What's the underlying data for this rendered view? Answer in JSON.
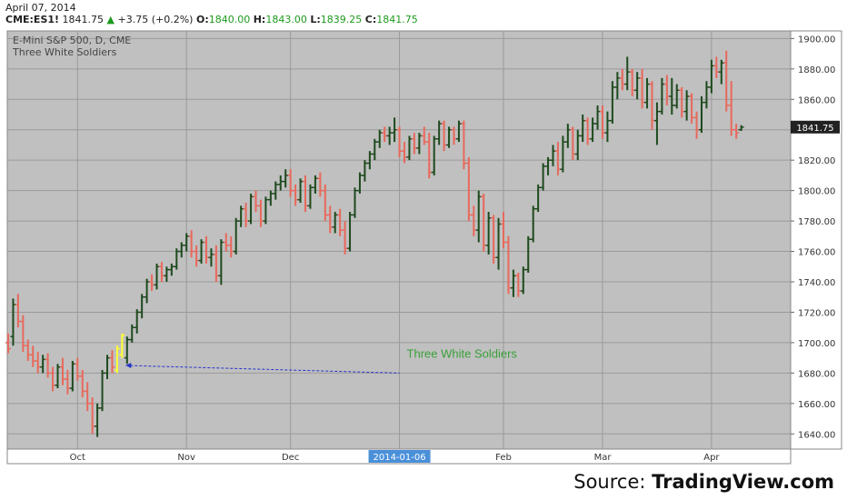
{
  "header": {
    "date": "April 07, 2014",
    "symbol": "CME:ES1!",
    "last": "1841.75",
    "change": "+3.75 (+0.2%)",
    "open_label": "O:",
    "open": "1840.00",
    "high_label": "H:",
    "high": "1843.00",
    "low_label": "L:",
    "low": "1839.25",
    "close_label": "C:",
    "close": "1841.75"
  },
  "source": {
    "prefix": "Source: ",
    "name": "TradingView.com"
  },
  "colors": {
    "up": "#1e4a1e",
    "down": "#e8695c",
    "plot_bg": "#c0c0c0",
    "highlight": "#ffff33",
    "annotation": "#3aa03a",
    "arrow": "#2233cc",
    "price_tag_bg": "#222222"
  },
  "chart_data": {
    "type": "ohlc",
    "title": "E-Mini S&P 500, D, CME",
    "subtitle": "Three White Soldiers",
    "ylim": [
      1630,
      1905
    ],
    "yticks": [
      1640,
      1660,
      1680,
      1700,
      1720,
      1740,
      1760,
      1780,
      1800,
      1820,
      1840,
      1860,
      1880,
      1900
    ],
    "ytick_labels": [
      "1640.00",
      "1660.00",
      "1680.00",
      "1700.00",
      "1720.00",
      "1740.00",
      "1760.00",
      "1780.00",
      "1800.00",
      "1820.00",
      "1840.00",
      "1860.00",
      "1880.00",
      "1900.00"
    ],
    "month_labels": [
      {
        "label": "Oct",
        "bar": 14
      },
      {
        "label": "Nov",
        "bar": 36
      },
      {
        "label": "Dec",
        "bar": 57
      },
      {
        "label": "2014-01-06",
        "bar": 79,
        "highlight": true
      },
      {
        "label": "Feb",
        "bar": 100
      },
      {
        "label": "Mar",
        "bar": 120
      },
      {
        "label": "Apr",
        "bar": 142
      }
    ],
    "last_price_label": "1841.75",
    "last_price": 1841.75,
    "annotation": {
      "text": "Three White Soldiers",
      "bar": 79,
      "price": 1685
    },
    "highlight_bars": [
      22,
      23
    ],
    "bars": [
      {
        "o": 1700,
        "h": 1706,
        "l": 1693,
        "c": 1696,
        "up": false
      },
      {
        "o": 1704,
        "h": 1729,
        "l": 1698,
        "c": 1725,
        "up": true
      },
      {
        "o": 1725,
        "h": 1732,
        "l": 1710,
        "c": 1714,
        "up": false
      },
      {
        "o": 1714,
        "h": 1718,
        "l": 1694,
        "c": 1698,
        "up": false
      },
      {
        "o": 1698,
        "h": 1702,
        "l": 1688,
        "c": 1692,
        "up": false
      },
      {
        "o": 1692,
        "h": 1698,
        "l": 1684,
        "c": 1688,
        "up": false
      },
      {
        "o": 1688,
        "h": 1694,
        "l": 1680,
        "c": 1684,
        "up": false
      },
      {
        "o": 1684,
        "h": 1692,
        "l": 1680,
        "c": 1689,
        "up": true
      },
      {
        "o": 1689,
        "h": 1693,
        "l": 1677,
        "c": 1680,
        "up": false
      },
      {
        "o": 1680,
        "h": 1684,
        "l": 1668,
        "c": 1672,
        "up": false
      },
      {
        "o": 1672,
        "h": 1686,
        "l": 1670,
        "c": 1684,
        "up": true
      },
      {
        "o": 1684,
        "h": 1690,
        "l": 1672,
        "c": 1676,
        "up": false
      },
      {
        "o": 1676,
        "h": 1682,
        "l": 1666,
        "c": 1670,
        "up": false
      },
      {
        "o": 1670,
        "h": 1688,
        "l": 1668,
        "c": 1686,
        "up": true
      },
      {
        "o": 1686,
        "h": 1690,
        "l": 1675,
        "c": 1678,
        "up": false
      },
      {
        "o": 1678,
        "h": 1682,
        "l": 1664,
        "c": 1668,
        "up": false
      },
      {
        "o": 1668,
        "h": 1674,
        "l": 1655,
        "c": 1660,
        "up": false
      },
      {
        "o": 1660,
        "h": 1664,
        "l": 1640,
        "c": 1645,
        "up": false
      },
      {
        "o": 1645,
        "h": 1660,
        "l": 1638,
        "c": 1657,
        "up": true
      },
      {
        "o": 1657,
        "h": 1682,
        "l": 1655,
        "c": 1680,
        "up": true
      },
      {
        "o": 1680,
        "h": 1692,
        "l": 1676,
        "c": 1690,
        "up": true
      },
      {
        "o": 1690,
        "h": 1695,
        "l": 1680,
        "c": 1684,
        "up": false
      },
      {
        "o": 1682,
        "h": 1698,
        "l": 1680,
        "c": 1696,
        "up": true
      },
      {
        "o": 1692,
        "h": 1706,
        "l": 1690,
        "c": 1705,
        "up": true
      },
      {
        "o": 1690,
        "h": 1704,
        "l": 1686,
        "c": 1702,
        "up": true
      },
      {
        "o": 1702,
        "h": 1712,
        "l": 1700,
        "c": 1710,
        "up": true
      },
      {
        "o": 1710,
        "h": 1722,
        "l": 1706,
        "c": 1720,
        "up": true
      },
      {
        "o": 1720,
        "h": 1732,
        "l": 1716,
        "c": 1730,
        "up": true
      },
      {
        "o": 1730,
        "h": 1742,
        "l": 1726,
        "c": 1740,
        "up": true
      },
      {
        "o": 1740,
        "h": 1745,
        "l": 1734,
        "c": 1738,
        "up": false
      },
      {
        "o": 1738,
        "h": 1752,
        "l": 1735,
        "c": 1750,
        "up": true
      },
      {
        "o": 1750,
        "h": 1753,
        "l": 1740,
        "c": 1744,
        "up": false
      },
      {
        "o": 1744,
        "h": 1750,
        "l": 1740,
        "c": 1748,
        "up": true
      },
      {
        "o": 1748,
        "h": 1752,
        "l": 1744,
        "c": 1750,
        "up": true
      },
      {
        "o": 1750,
        "h": 1762,
        "l": 1748,
        "c": 1760,
        "up": true
      },
      {
        "o": 1760,
        "h": 1766,
        "l": 1756,
        "c": 1764,
        "up": true
      },
      {
        "o": 1764,
        "h": 1772,
        "l": 1760,
        "c": 1770,
        "up": true
      },
      {
        "o": 1770,
        "h": 1774,
        "l": 1756,
        "c": 1760,
        "up": false
      },
      {
        "o": 1760,
        "h": 1764,
        "l": 1750,
        "c": 1754,
        "up": false
      },
      {
        "o": 1754,
        "h": 1768,
        "l": 1752,
        "c": 1766,
        "up": true
      },
      {
        "o": 1766,
        "h": 1770,
        "l": 1752,
        "c": 1756,
        "up": false
      },
      {
        "o": 1756,
        "h": 1762,
        "l": 1750,
        "c": 1758,
        "up": true
      },
      {
        "o": 1758,
        "h": 1764,
        "l": 1740,
        "c": 1744,
        "up": false
      },
      {
        "o": 1744,
        "h": 1768,
        "l": 1738,
        "c": 1766,
        "up": true
      },
      {
        "o": 1766,
        "h": 1772,
        "l": 1760,
        "c": 1764,
        "up": false
      },
      {
        "o": 1764,
        "h": 1770,
        "l": 1756,
        "c": 1760,
        "up": false
      },
      {
        "o": 1760,
        "h": 1782,
        "l": 1758,
        "c": 1780,
        "up": true
      },
      {
        "o": 1780,
        "h": 1790,
        "l": 1776,
        "c": 1788,
        "up": true
      },
      {
        "o": 1788,
        "h": 1792,
        "l": 1776,
        "c": 1780,
        "up": false
      },
      {
        "o": 1780,
        "h": 1798,
        "l": 1778,
        "c": 1796,
        "up": true
      },
      {
        "o": 1796,
        "h": 1800,
        "l": 1786,
        "c": 1790,
        "up": false
      },
      {
        "o": 1790,
        "h": 1794,
        "l": 1776,
        "c": 1780,
        "up": false
      },
      {
        "o": 1780,
        "h": 1796,
        "l": 1778,
        "c": 1794,
        "up": true
      },
      {
        "o": 1794,
        "h": 1800,
        "l": 1790,
        "c": 1798,
        "up": true
      },
      {
        "o": 1798,
        "h": 1806,
        "l": 1794,
        "c": 1804,
        "up": true
      },
      {
        "o": 1804,
        "h": 1810,
        "l": 1800,
        "c": 1806,
        "up": true
      },
      {
        "o": 1806,
        "h": 1814,
        "l": 1802,
        "c": 1810,
        "up": true
      },
      {
        "o": 1810,
        "h": 1814,
        "l": 1796,
        "c": 1800,
        "up": false
      },
      {
        "o": 1800,
        "h": 1804,
        "l": 1790,
        "c": 1794,
        "up": false
      },
      {
        "o": 1794,
        "h": 1808,
        "l": 1792,
        "c": 1806,
        "up": true
      },
      {
        "o": 1806,
        "h": 1810,
        "l": 1786,
        "c": 1790,
        "up": false
      },
      {
        "o": 1790,
        "h": 1804,
        "l": 1788,
        "c": 1802,
        "up": true
      },
      {
        "o": 1802,
        "h": 1810,
        "l": 1798,
        "c": 1808,
        "up": true
      },
      {
        "o": 1808,
        "h": 1812,
        "l": 1796,
        "c": 1800,
        "up": false
      },
      {
        "o": 1800,
        "h": 1804,
        "l": 1780,
        "c": 1784,
        "up": false
      },
      {
        "o": 1784,
        "h": 1790,
        "l": 1772,
        "c": 1776,
        "up": false
      },
      {
        "o": 1776,
        "h": 1786,
        "l": 1772,
        "c": 1784,
        "up": true
      },
      {
        "o": 1784,
        "h": 1788,
        "l": 1770,
        "c": 1774,
        "up": false
      },
      {
        "o": 1774,
        "h": 1780,
        "l": 1758,
        "c": 1762,
        "up": false
      },
      {
        "o": 1762,
        "h": 1786,
        "l": 1760,
        "c": 1784,
        "up": true
      },
      {
        "o": 1784,
        "h": 1802,
        "l": 1782,
        "c": 1800,
        "up": true
      },
      {
        "o": 1800,
        "h": 1812,
        "l": 1798,
        "c": 1810,
        "up": true
      },
      {
        "o": 1810,
        "h": 1820,
        "l": 1806,
        "c": 1818,
        "up": true
      },
      {
        "o": 1818,
        "h": 1826,
        "l": 1814,
        "c": 1824,
        "up": true
      },
      {
        "o": 1824,
        "h": 1834,
        "l": 1820,
        "c": 1832,
        "up": true
      },
      {
        "o": 1832,
        "h": 1840,
        "l": 1828,
        "c": 1838,
        "up": true
      },
      {
        "o": 1838,
        "h": 1842,
        "l": 1832,
        "c": 1836,
        "up": false
      },
      {
        "o": 1836,
        "h": 1842,
        "l": 1830,
        "c": 1838,
        "up": true
      },
      {
        "o": 1838,
        "h": 1848,
        "l": 1832,
        "c": 1840,
        "up": true
      },
      {
        "o": 1840,
        "h": 1842,
        "l": 1822,
        "c": 1826,
        "up": false
      },
      {
        "o": 1826,
        "h": 1832,
        "l": 1818,
        "c": 1822,
        "up": false
      },
      {
        "o": 1822,
        "h": 1836,
        "l": 1820,
        "c": 1834,
        "up": true
      },
      {
        "o": 1834,
        "h": 1838,
        "l": 1824,
        "c": 1828,
        "up": false
      },
      {
        "o": 1828,
        "h": 1838,
        "l": 1824,
        "c": 1836,
        "up": true
      },
      {
        "o": 1836,
        "h": 1842,
        "l": 1830,
        "c": 1832,
        "up": false
      },
      {
        "o": 1832,
        "h": 1838,
        "l": 1808,
        "c": 1812,
        "up": false
      },
      {
        "o": 1812,
        "h": 1836,
        "l": 1810,
        "c": 1834,
        "up": true
      },
      {
        "o": 1834,
        "h": 1846,
        "l": 1830,
        "c": 1844,
        "up": true
      },
      {
        "o": 1844,
        "h": 1846,
        "l": 1826,
        "c": 1830,
        "up": false
      },
      {
        "o": 1830,
        "h": 1842,
        "l": 1828,
        "c": 1840,
        "up": true
      },
      {
        "o": 1840,
        "h": 1842,
        "l": 1830,
        "c": 1834,
        "up": false
      },
      {
        "o": 1834,
        "h": 1846,
        "l": 1832,
        "c": 1844,
        "up": true
      },
      {
        "o": 1844,
        "h": 1846,
        "l": 1814,
        "c": 1818,
        "up": false
      },
      {
        "o": 1818,
        "h": 1822,
        "l": 1780,
        "c": 1784,
        "up": false
      },
      {
        "o": 1784,
        "h": 1790,
        "l": 1770,
        "c": 1774,
        "up": false
      },
      {
        "o": 1774,
        "h": 1800,
        "l": 1766,
        "c": 1796,
        "up": true
      },
      {
        "o": 1796,
        "h": 1798,
        "l": 1760,
        "c": 1764,
        "up": false
      },
      {
        "o": 1764,
        "h": 1786,
        "l": 1758,
        "c": 1782,
        "up": true
      },
      {
        "o": 1782,
        "h": 1784,
        "l": 1752,
        "c": 1756,
        "up": false
      },
      {
        "o": 1756,
        "h": 1782,
        "l": 1748,
        "c": 1778,
        "up": true
      },
      {
        "o": 1778,
        "h": 1786,
        "l": 1762,
        "c": 1766,
        "up": false
      },
      {
        "o": 1766,
        "h": 1770,
        "l": 1732,
        "c": 1736,
        "up": false
      },
      {
        "o": 1736,
        "h": 1748,
        "l": 1730,
        "c": 1744,
        "up": true
      },
      {
        "o": 1744,
        "h": 1746,
        "l": 1730,
        "c": 1734,
        "up": false
      },
      {
        "o": 1734,
        "h": 1750,
        "l": 1732,
        "c": 1748,
        "up": true
      },
      {
        "o": 1748,
        "h": 1770,
        "l": 1746,
        "c": 1768,
        "up": true
      },
      {
        "o": 1768,
        "h": 1790,
        "l": 1766,
        "c": 1788,
        "up": true
      },
      {
        "o": 1788,
        "h": 1804,
        "l": 1786,
        "c": 1802,
        "up": true
      },
      {
        "o": 1802,
        "h": 1818,
        "l": 1800,
        "c": 1816,
        "up": true
      },
      {
        "o": 1816,
        "h": 1822,
        "l": 1810,
        "c": 1820,
        "up": true
      },
      {
        "o": 1820,
        "h": 1830,
        "l": 1816,
        "c": 1826,
        "up": true
      },
      {
        "o": 1826,
        "h": 1832,
        "l": 1810,
        "c": 1814,
        "up": false
      },
      {
        "o": 1814,
        "h": 1836,
        "l": 1812,
        "c": 1832,
        "up": true
      },
      {
        "o": 1832,
        "h": 1844,
        "l": 1828,
        "c": 1840,
        "up": true
      },
      {
        "o": 1840,
        "h": 1842,
        "l": 1820,
        "c": 1824,
        "up": false
      },
      {
        "o": 1824,
        "h": 1840,
        "l": 1820,
        "c": 1836,
        "up": true
      },
      {
        "o": 1836,
        "h": 1850,
        "l": 1832,
        "c": 1846,
        "up": true
      },
      {
        "o": 1846,
        "h": 1848,
        "l": 1830,
        "c": 1834,
        "up": false
      },
      {
        "o": 1834,
        "h": 1848,
        "l": 1832,
        "c": 1844,
        "up": true
      },
      {
        "o": 1844,
        "h": 1856,
        "l": 1840,
        "c": 1852,
        "up": true
      },
      {
        "o": 1852,
        "h": 1856,
        "l": 1834,
        "c": 1838,
        "up": false
      },
      {
        "o": 1838,
        "h": 1852,
        "l": 1832,
        "c": 1846,
        "up": true
      },
      {
        "o": 1846,
        "h": 1872,
        "l": 1844,
        "c": 1868,
        "up": true
      },
      {
        "o": 1868,
        "h": 1878,
        "l": 1860,
        "c": 1874,
        "up": true
      },
      {
        "o": 1874,
        "h": 1880,
        "l": 1866,
        "c": 1870,
        "up": false
      },
      {
        "o": 1870,
        "h": 1888,
        "l": 1866,
        "c": 1878,
        "up": true
      },
      {
        "o": 1878,
        "h": 1880,
        "l": 1862,
        "c": 1866,
        "up": false
      },
      {
        "o": 1866,
        "h": 1878,
        "l": 1860,
        "c": 1874,
        "up": true
      },
      {
        "o": 1874,
        "h": 1880,
        "l": 1854,
        "c": 1858,
        "up": false
      },
      {
        "o": 1858,
        "h": 1874,
        "l": 1854,
        "c": 1870,
        "up": true
      },
      {
        "o": 1870,
        "h": 1872,
        "l": 1840,
        "c": 1846,
        "up": false
      },
      {
        "o": 1846,
        "h": 1858,
        "l": 1830,
        "c": 1852,
        "up": true
      },
      {
        "o": 1852,
        "h": 1874,
        "l": 1850,
        "c": 1870,
        "up": true
      },
      {
        "o": 1870,
        "h": 1876,
        "l": 1856,
        "c": 1862,
        "up": false
      },
      {
        "o": 1862,
        "h": 1874,
        "l": 1850,
        "c": 1856,
        "up": true
      },
      {
        "o": 1856,
        "h": 1870,
        "l": 1854,
        "c": 1866,
        "up": true
      },
      {
        "o": 1866,
        "h": 1868,
        "l": 1848,
        "c": 1852,
        "up": false
      },
      {
        "o": 1852,
        "h": 1866,
        "l": 1846,
        "c": 1862,
        "up": true
      },
      {
        "o": 1862,
        "h": 1864,
        "l": 1844,
        "c": 1848,
        "up": false
      },
      {
        "o": 1848,
        "h": 1852,
        "l": 1834,
        "c": 1840,
        "up": false
      },
      {
        "o": 1840,
        "h": 1862,
        "l": 1838,
        "c": 1858,
        "up": true
      },
      {
        "o": 1858,
        "h": 1872,
        "l": 1854,
        "c": 1868,
        "up": true
      },
      {
        "o": 1868,
        "h": 1886,
        "l": 1864,
        "c": 1882,
        "up": true
      },
      {
        "o": 1882,
        "h": 1888,
        "l": 1874,
        "c": 1878,
        "up": false
      },
      {
        "o": 1878,
        "h": 1886,
        "l": 1870,
        "c": 1884,
        "up": true
      },
      {
        "o": 1884,
        "h": 1892,
        "l": 1852,
        "c": 1856,
        "up": false
      },
      {
        "o": 1856,
        "h": 1872,
        "l": 1836,
        "c": 1840,
        "up": false
      },
      {
        "o": 1840,
        "h": 1844,
        "l": 1834,
        "c": 1838,
        "up": false
      },
      {
        "o": 1840,
        "h": 1843,
        "l": 1839.25,
        "c": 1841.75,
        "up": true
      }
    ]
  }
}
